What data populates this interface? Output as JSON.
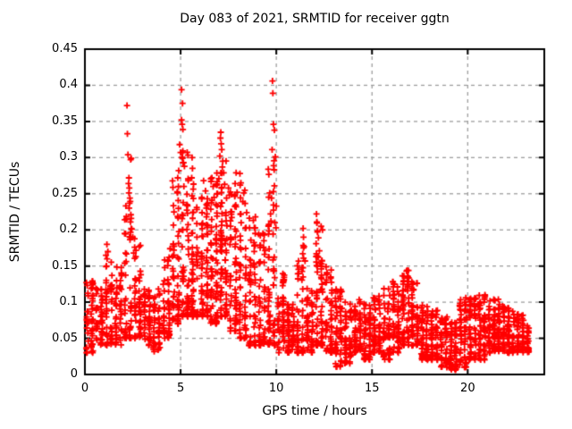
{
  "page": {
    "background": "#ffffff"
  },
  "chart_data": {
    "type": "scatter",
    "title": "Day 083 of 2021, SRMTID for receiver ggtn",
    "xlabel": "GPS time / hours",
    "ylabel": "SRMTID / TECUs",
    "xlim": [
      0,
      24
    ],
    "ylim": [
      0,
      0.45
    ],
    "xticks": {
      "values": [
        0,
        5,
        10,
        15,
        20
      ],
      "labels": [
        "0",
        "5",
        "10",
        "15",
        "20"
      ]
    },
    "yticks": {
      "values": [
        0,
        0.05,
        0.1,
        0.15,
        0.2,
        0.25,
        0.3,
        0.35,
        0.4,
        0.45
      ],
      "labels": [
        "0",
        "0.05",
        "0.1",
        "0.15",
        "0.2",
        "0.25",
        "0.3",
        "0.35",
        "0.4",
        "0.45"
      ]
    },
    "grid": {
      "show": true,
      "color": "#9e9e9e",
      "dash": [
        4,
        4
      ]
    },
    "axis_color": "#000000",
    "legend": "none",
    "series": [
      {
        "name": "SRMTID",
        "marker": "plus",
        "color": "#ff0000",
        "marker_size": 7,
        "peak_points": [
          [
            1.15,
            0.18
          ],
          [
            1.2,
            0.17
          ],
          [
            1.1,
            0.165
          ],
          [
            2.2,
            0.372
          ],
          [
            2.22,
            0.333
          ],
          [
            2.25,
            0.304
          ],
          [
            2.3,
            0.272
          ],
          [
            2.28,
            0.264
          ],
          [
            2.32,
            0.258
          ],
          [
            2.3,
            0.251
          ],
          [
            2.35,
            0.244
          ],
          [
            2.33,
            0.237
          ],
          [
            2.31,
            0.23
          ],
          [
            2.4,
            0.221
          ],
          [
            2.38,
            0.211
          ],
          [
            2.45,
            0.201
          ],
          [
            2.5,
            0.19
          ],
          [
            2.6,
            0.176
          ],
          [
            2.55,
            0.168
          ],
          [
            4.45,
            0.174
          ],
          [
            4.4,
            0.162
          ],
          [
            5.05,
            0.394
          ],
          [
            5.1,
            0.375
          ],
          [
            5.05,
            0.352
          ],
          [
            5.08,
            0.346
          ],
          [
            5.12,
            0.339
          ],
          [
            4.95,
            0.318
          ],
          [
            5.0,
            0.307
          ],
          [
            5.1,
            0.299
          ],
          [
            5.15,
            0.293
          ],
          [
            5.2,
            0.288
          ],
          [
            4.9,
            0.282
          ],
          [
            4.85,
            0.272
          ],
          [
            5.6,
            0.3
          ],
          [
            5.62,
            0.285
          ],
          [
            5.58,
            0.272
          ],
          [
            6.2,
            0.268
          ],
          [
            6.3,
            0.254
          ],
          [
            6.1,
            0.243
          ],
          [
            6.35,
            0.235
          ],
          [
            6.7,
            0.26
          ],
          [
            6.75,
            0.245
          ],
          [
            7.1,
            0.335
          ],
          [
            7.08,
            0.327
          ],
          [
            7.12,
            0.319
          ],
          [
            7.15,
            0.311
          ],
          [
            7.05,
            0.302
          ],
          [
            7.2,
            0.295
          ],
          [
            7.18,
            0.287
          ],
          [
            7.25,
            0.279
          ],
          [
            7.0,
            0.271
          ],
          [
            7.3,
            0.263
          ],
          [
            6.9,
            0.25
          ],
          [
            7.4,
            0.244
          ],
          [
            7.5,
            0.258
          ],
          [
            7.55,
            0.248
          ],
          [
            7.9,
            0.279
          ],
          [
            7.85,
            0.264
          ],
          [
            7.95,
            0.252
          ],
          [
            8.1,
            0.278
          ],
          [
            8.15,
            0.265
          ],
          [
            8.3,
            0.251
          ],
          [
            8.25,
            0.239
          ],
          [
            8.45,
            0.224
          ],
          [
            8.8,
            0.213
          ],
          [
            8.85,
            0.203
          ],
          [
            8.9,
            0.195
          ],
          [
            9.3,
            0.195
          ],
          [
            9.35,
            0.185
          ],
          [
            9.8,
            0.406
          ],
          [
            9.82,
            0.389
          ],
          [
            9.85,
            0.346
          ],
          [
            9.9,
            0.338
          ],
          [
            9.78,
            0.311
          ],
          [
            9.95,
            0.301
          ],
          [
            9.9,
            0.261
          ],
          [
            9.85,
            0.253
          ],
          [
            9.75,
            0.244
          ],
          [
            10.0,
            0.233
          ],
          [
            9.7,
            0.222
          ],
          [
            9.72,
            0.212
          ],
          [
            9.98,
            0.203
          ],
          [
            11.4,
            0.202
          ],
          [
            11.42,
            0.19
          ],
          [
            11.45,
            0.177
          ],
          [
            11.38,
            0.167
          ],
          [
            11.5,
            0.157
          ],
          [
            11.35,
            0.148
          ],
          [
            12.1,
            0.222
          ],
          [
            12.12,
            0.211
          ],
          [
            12.15,
            0.197
          ],
          [
            12.2,
            0.189
          ],
          [
            12.08,
            0.181
          ],
          [
            12.25,
            0.171
          ],
          [
            12.18,
            0.162
          ],
          [
            12.3,
            0.154
          ],
          [
            12.35,
            0.146
          ],
          [
            12.6,
            0.149
          ],
          [
            12.65,
            0.14
          ],
          [
            13.2,
            0.115
          ],
          [
            13.25,
            0.105
          ],
          [
            16.8,
            0.143
          ],
          [
            16.85,
            0.133
          ],
          [
            16.9,
            0.125
          ],
          [
            16.75,
            0.118
          ],
          [
            19.9,
            0.106
          ],
          [
            20.1,
            0.104
          ],
          [
            20.9,
            0.11
          ],
          [
            20.85,
            0.1
          ],
          [
            21.6,
            0.104
          ],
          [
            21.65,
            0.097
          ]
        ],
        "cloud_segments_format": "[x_start, x_end, n_points, y_min, y_max, skew] — density envelope read from the plot",
        "cloud_segments": [
          [
            0.0,
            0.5,
            55,
            0.03,
            0.13,
            1.3
          ],
          [
            0.5,
            1.0,
            50,
            0.04,
            0.12,
            1.3
          ],
          [
            1.0,
            1.5,
            50,
            0.04,
            0.16,
            1.4
          ],
          [
            1.5,
            2.0,
            45,
            0.04,
            0.15,
            1.4
          ],
          [
            2.0,
            2.5,
            55,
            0.05,
            0.3,
            2.2
          ],
          [
            2.5,
            3.0,
            50,
            0.05,
            0.19,
            1.8
          ],
          [
            3.0,
            3.5,
            45,
            0.04,
            0.12,
            1.3
          ],
          [
            3.5,
            4.0,
            45,
            0.03,
            0.12,
            1.3
          ],
          [
            4.0,
            4.5,
            50,
            0.05,
            0.17,
            1.4
          ],
          [
            4.5,
            5.0,
            60,
            0.07,
            0.27,
            1.8
          ],
          [
            5.0,
            5.5,
            65,
            0.08,
            0.31,
            1.8
          ],
          [
            5.5,
            6.0,
            60,
            0.08,
            0.27,
            1.7
          ],
          [
            6.0,
            6.5,
            65,
            0.08,
            0.25,
            1.5
          ],
          [
            6.5,
            7.0,
            75,
            0.07,
            0.28,
            1.6
          ],
          [
            7.0,
            7.5,
            75,
            0.08,
            0.3,
            1.7
          ],
          [
            7.5,
            8.0,
            60,
            0.06,
            0.27,
            1.7
          ],
          [
            8.0,
            8.5,
            55,
            0.05,
            0.27,
            1.8
          ],
          [
            8.5,
            9.0,
            50,
            0.04,
            0.22,
            1.7
          ],
          [
            9.0,
            9.5,
            50,
            0.04,
            0.2,
            1.6
          ],
          [
            9.5,
            10.0,
            60,
            0.04,
            0.3,
            1.9
          ],
          [
            10.0,
            10.5,
            50,
            0.03,
            0.14,
            1.5
          ],
          [
            10.5,
            11.0,
            55,
            0.03,
            0.1,
            1.4
          ],
          [
            11.0,
            11.5,
            50,
            0.03,
            0.19,
            1.9
          ],
          [
            11.5,
            12.0,
            50,
            0.03,
            0.12,
            1.5
          ],
          [
            12.0,
            12.5,
            60,
            0.04,
            0.21,
            1.9
          ],
          [
            12.5,
            13.0,
            50,
            0.03,
            0.15,
            1.6
          ],
          [
            13.0,
            13.5,
            55,
            0.01,
            0.12,
            1.5
          ],
          [
            13.5,
            14.0,
            55,
            0.015,
            0.1,
            1.4
          ],
          [
            14.0,
            14.5,
            50,
            0.03,
            0.11,
            1.4
          ],
          [
            14.5,
            15.0,
            55,
            0.02,
            0.1,
            1.4
          ],
          [
            15.0,
            15.5,
            55,
            0.03,
            0.11,
            1.4
          ],
          [
            15.5,
            16.0,
            55,
            0.02,
            0.12,
            1.4
          ],
          [
            16.0,
            16.5,
            55,
            0.03,
            0.13,
            1.4
          ],
          [
            16.5,
            17.0,
            60,
            0.04,
            0.145,
            1.5
          ],
          [
            17.0,
            17.5,
            55,
            0.04,
            0.13,
            1.5
          ],
          [
            17.5,
            18.0,
            55,
            0.02,
            0.1,
            1.4
          ],
          [
            18.0,
            18.5,
            55,
            0.02,
            0.09,
            1.4
          ],
          [
            18.5,
            19.0,
            55,
            0.01,
            0.08,
            1.3
          ],
          [
            19.0,
            19.5,
            55,
            0.005,
            0.075,
            1.3
          ],
          [
            19.5,
            20.0,
            55,
            0.01,
            0.105,
            1.4
          ],
          [
            20.0,
            20.5,
            55,
            0.02,
            0.11,
            1.4
          ],
          [
            20.5,
            21.0,
            55,
            0.02,
            0.11,
            1.4
          ],
          [
            21.0,
            21.5,
            60,
            0.03,
            0.105,
            1.3
          ],
          [
            21.5,
            22.0,
            60,
            0.03,
            0.1,
            1.3
          ],
          [
            22.0,
            22.5,
            55,
            0.03,
            0.095,
            1.3
          ],
          [
            22.5,
            23.0,
            50,
            0.03,
            0.085,
            1.3
          ],
          [
            23.0,
            23.3,
            25,
            0.03,
            0.07,
            1.2
          ]
        ]
      }
    ]
  }
}
